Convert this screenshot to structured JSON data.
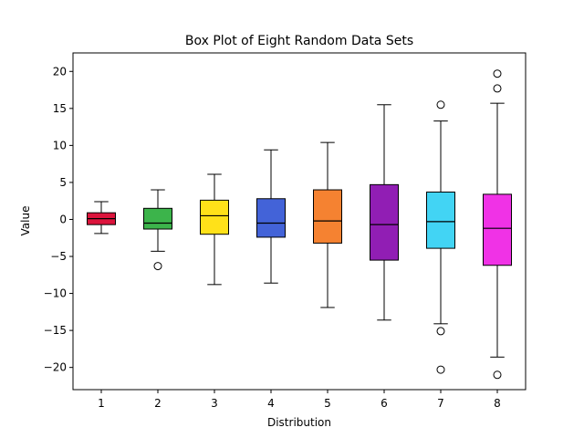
{
  "chart_data": {
    "type": "box",
    "title": "Box Plot of Eight Random Data Sets",
    "xlabel": "Distribution",
    "ylabel": "Value",
    "ylim": [
      -23,
      22.5
    ],
    "yticks": [
      -20,
      -15,
      -10,
      -5,
      0,
      5,
      10,
      15,
      20
    ],
    "categories": [
      "1",
      "2",
      "3",
      "4",
      "5",
      "6",
      "7",
      "8"
    ],
    "grid": false,
    "legend": "none",
    "boxes": [
      {
        "label": "1",
        "color": "#dc143c",
        "whisker_low": -1.9,
        "q1": -0.7,
        "median": 0.1,
        "q3": 0.9,
        "whisker_high": 2.4,
        "outliers": []
      },
      {
        "label": "2",
        "color": "#3cb44b",
        "whisker_low": -4.3,
        "q1": -1.3,
        "median": -0.5,
        "q3": 1.5,
        "whisker_high": 4.0,
        "outliers": [
          -6.3
        ]
      },
      {
        "label": "3",
        "color": "#ffe119",
        "whisker_low": -8.8,
        "q1": -2.0,
        "median": 0.5,
        "q3": 2.6,
        "whisker_high": 6.1,
        "outliers": []
      },
      {
        "label": "4",
        "color": "#4363d8",
        "whisker_low": -8.6,
        "q1": -2.4,
        "median": -0.5,
        "q3": 2.8,
        "whisker_high": 9.4,
        "outliers": []
      },
      {
        "label": "5",
        "color": "#f58231",
        "whisker_low": -11.9,
        "q1": -3.2,
        "median": -0.2,
        "q3": 4.0,
        "whisker_high": 10.4,
        "outliers": []
      },
      {
        "label": "6",
        "color": "#911eb4",
        "whisker_low": -13.6,
        "q1": -5.5,
        "median": -0.7,
        "q3": 4.7,
        "whisker_high": 15.5,
        "outliers": []
      },
      {
        "label": "7",
        "color": "#42d4f4",
        "whisker_low": -14.1,
        "q1": -3.9,
        "median": -0.3,
        "q3": 3.7,
        "whisker_high": 13.3,
        "outliers": [
          15.5,
          -15.1,
          -20.3
        ]
      },
      {
        "label": "8",
        "color": "#f032e6",
        "whisker_low": -18.6,
        "q1": -6.2,
        "median": -1.2,
        "q3": 3.4,
        "whisker_high": 15.7,
        "outliers": [
          19.7,
          17.7,
          -21.0
        ]
      }
    ]
  }
}
